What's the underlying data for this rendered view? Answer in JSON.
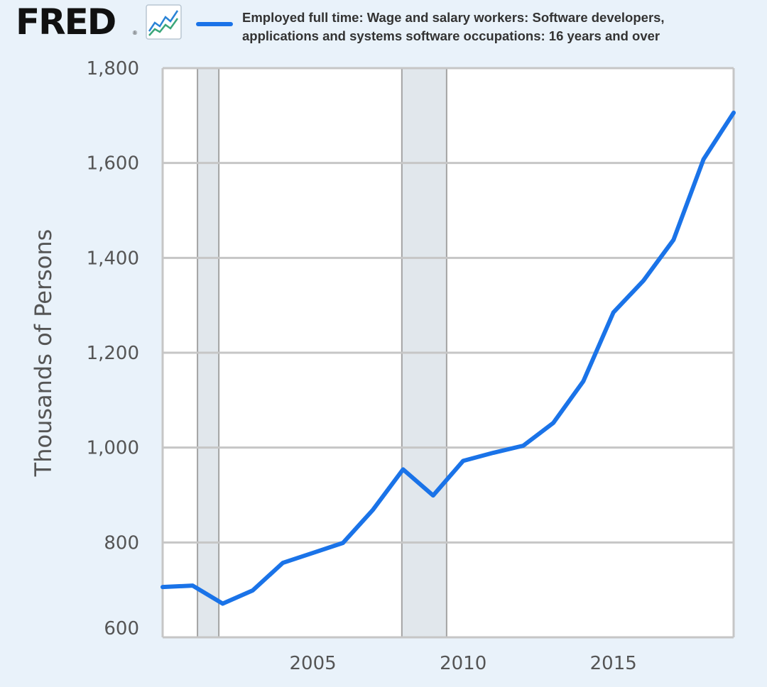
{
  "header": {
    "logo": "FRED",
    "registered_mark": "®",
    "logo_icon": "line-chart-icon",
    "legend_label_line1": "Employed full time: Wage and salary workers: Software developers,",
    "legend_label_line2": "applications and systems software occupations: 16 years and over"
  },
  "chart_data": {
    "type": "line",
    "xlim": [
      2000,
      2019
    ],
    "ylim": [
      600,
      1800
    ],
    "yticks": [
      600,
      800,
      1000,
      1200,
      1400,
      1600,
      1800
    ],
    "ytick_labels": [
      "600",
      "800",
      "1,000",
      "1,200",
      "1,400",
      "1,600",
      "1,800"
    ],
    "xticks": [
      2005,
      2010,
      2015
    ],
    "xtick_labels": [
      "2005",
      "2010",
      "2015"
    ],
    "ylabel": "Thousands of Persons",
    "xlabel": "",
    "grid": true,
    "recessions": [
      [
        2001.16,
        2001.87
      ],
      [
        2007.96,
        2009.45
      ]
    ],
    "series": [
      {
        "name": "Employed full time: Wage and salary workers: Software developers, applications and systems software occupations: 16 years and over",
        "color": "#1a73e8",
        "x": [
          2000,
          2001,
          2002,
          2003,
          2004,
          2005,
          2006,
          2007,
          2008,
          2009,
          2010,
          2011,
          2012,
          2013,
          2014,
          2015,
          2016,
          2017,
          2018,
          2019
        ],
        "y": [
          706,
          709,
          671,
          699,
          757,
          778,
          799,
          869,
          954,
          899,
          972,
          989,
          1004,
          1052,
          1140,
          1285,
          1352,
          1438,
          1608,
          1706
        ]
      }
    ]
  }
}
